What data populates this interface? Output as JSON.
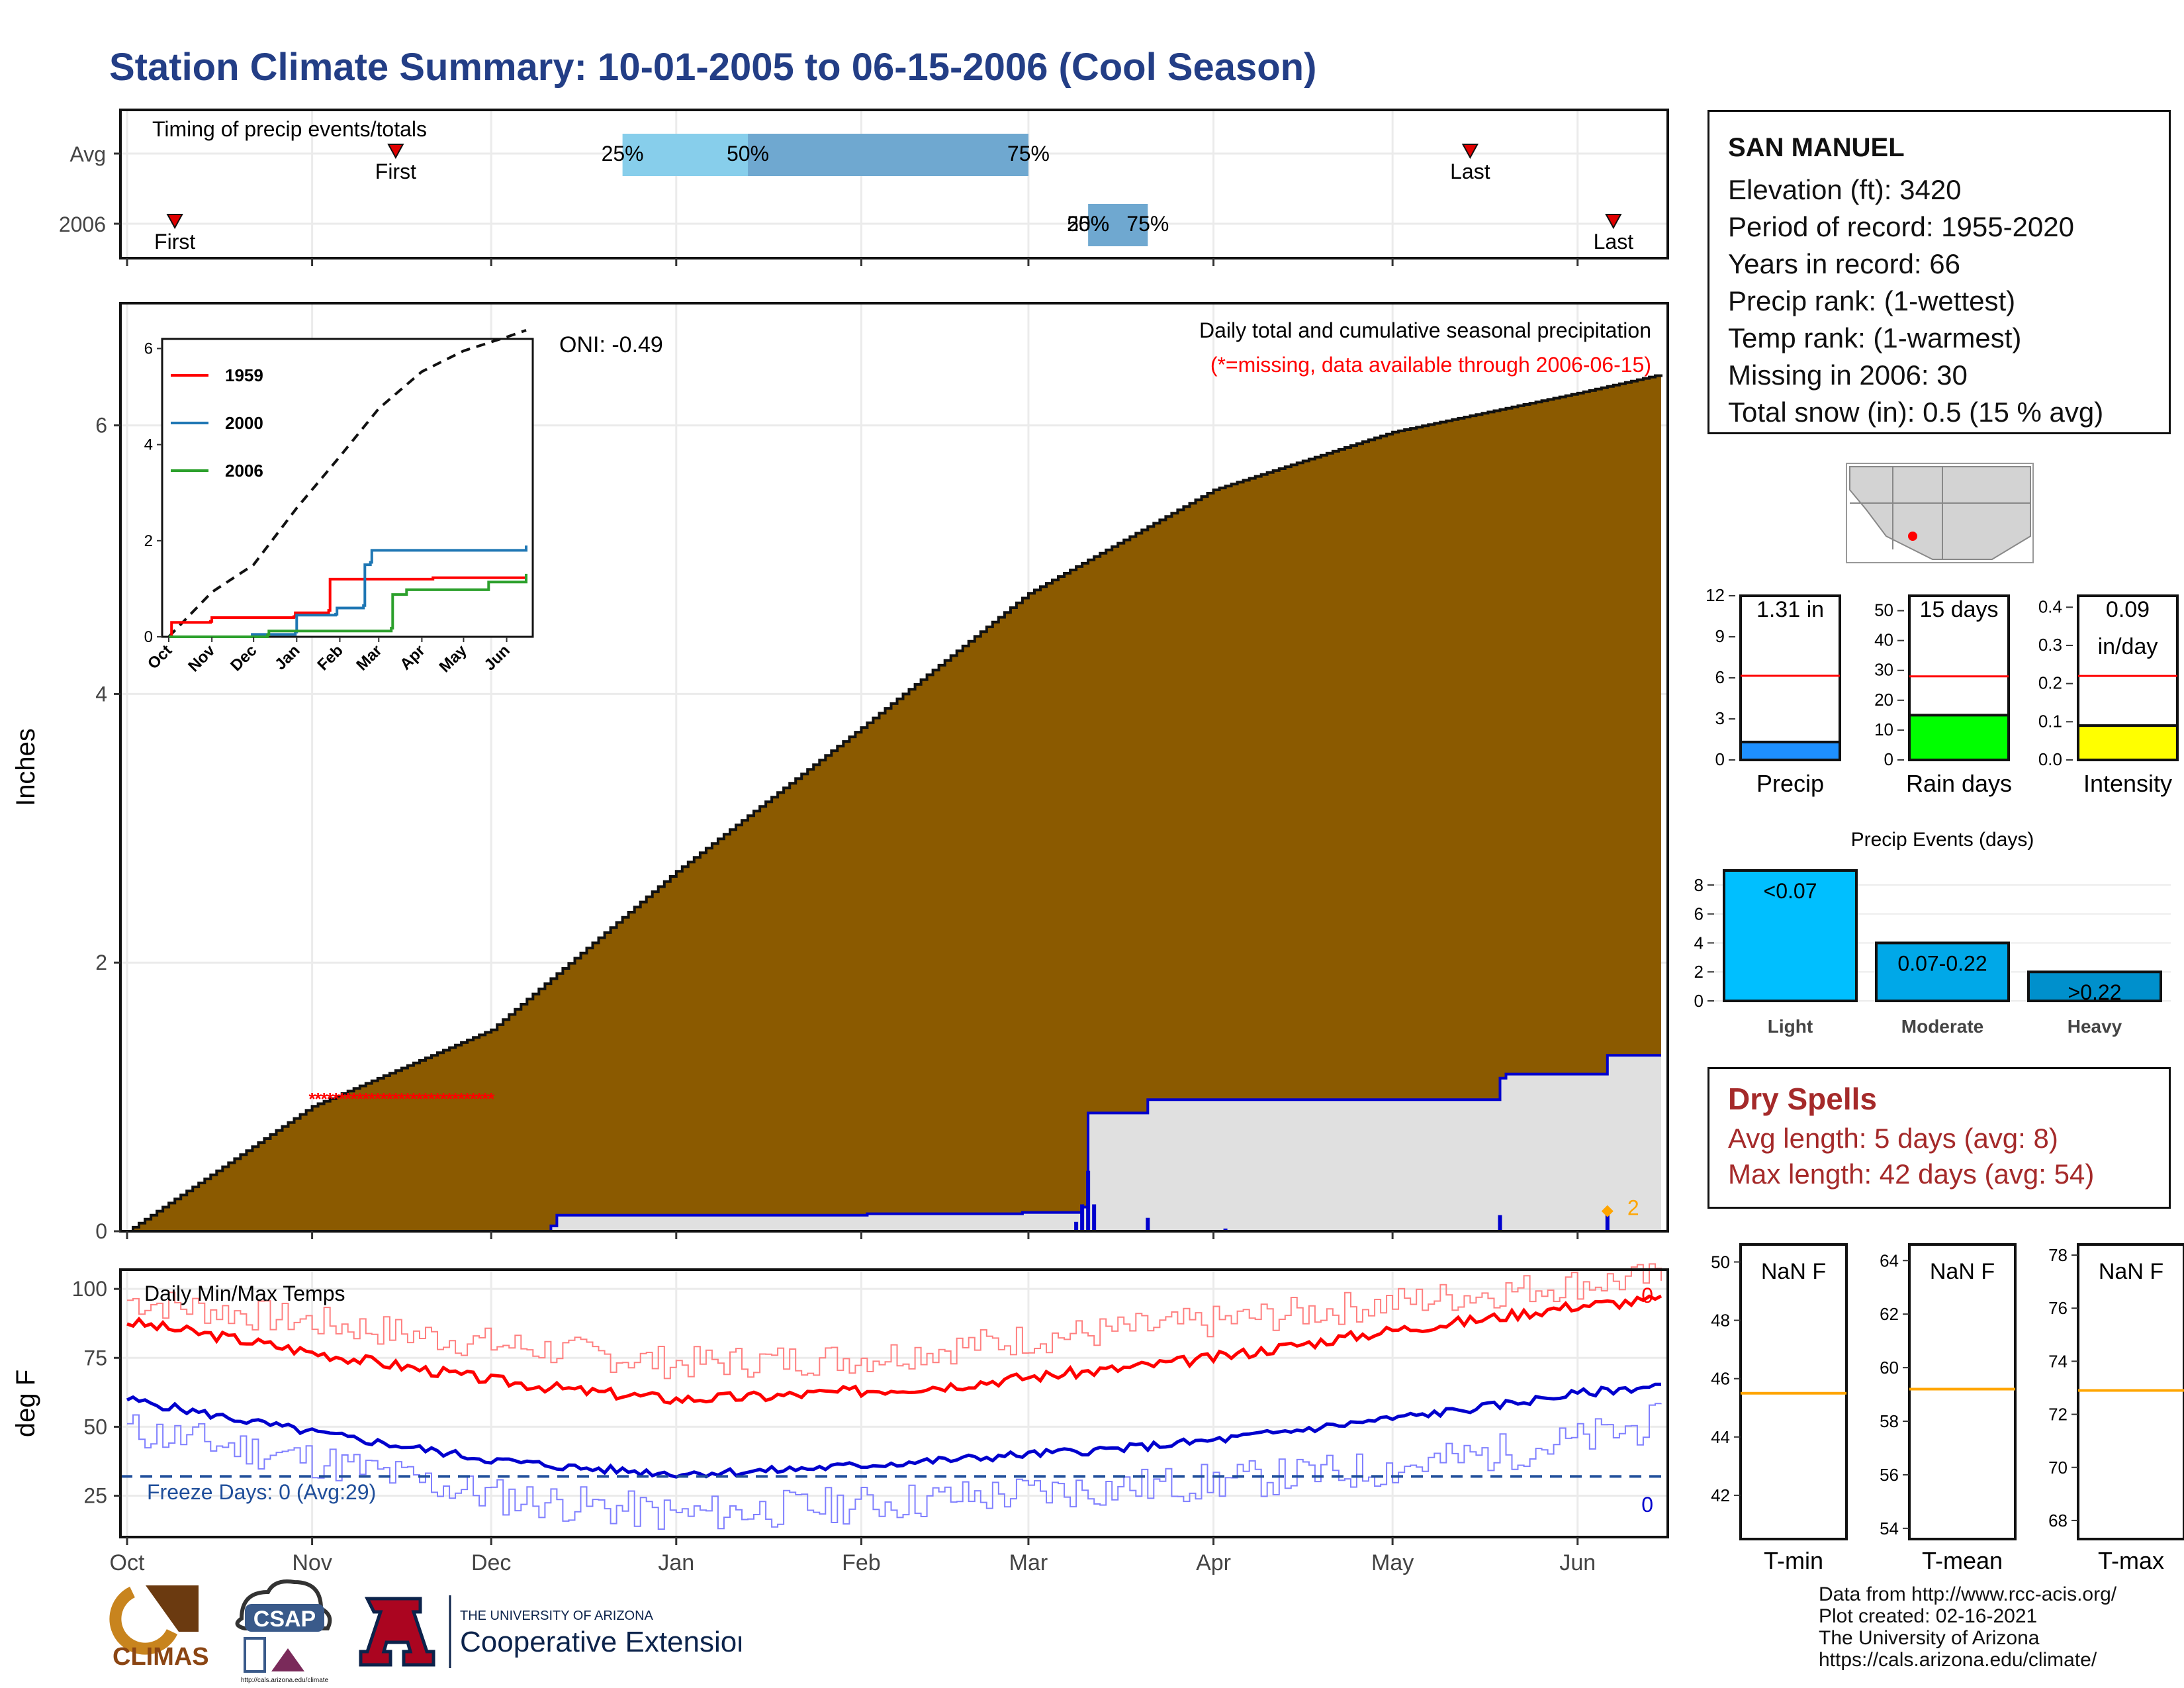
{
  "title": "Station Climate Summary: 10-01-2005 to 06-15-2006 (Cool Season)",
  "station": {
    "name": "SAN MANUEL",
    "elevation": "Elevation (ft): 3420",
    "period": "Period of record: 1955-2020",
    "years": "Years in record: 66",
    "precip_rank": "Precip rank:  (1-wettest)",
    "temp_rank": "Temp rank:  (1-warmest)",
    "missing": "Missing in 2006: 30",
    "snow": "Total snow (in): 0.5 (15 % avg)"
  },
  "dry_spells": {
    "heading": "Dry Spells",
    "avg": "Avg length: 5 days (avg: 8)",
    "max": "Max length: 42 days (avg: 54)"
  },
  "credits": [
    "Data from http://www.rcc-acis.org/",
    "Plot created: 02-16-2021",
    "The University of Arizona",
    "https://cals.arizona.edu/climate/"
  ],
  "logos": {
    "climas": "CLIMAS",
    "csap": "CSAP",
    "csap_url": "http://cals.arizona.edu/climate",
    "ua_small": "THE UNIVERSITY OF ARIZONA",
    "ua_big": "Cooperative Extension"
  },
  "colors": {
    "title": "#233e86",
    "brown": "#8b5a00",
    "blue": "#0000cd",
    "red": "#ff0000",
    "grey_fill": "#e0e0e0",
    "dry": "#a52a2a"
  },
  "chart_data": [
    {
      "id": "timing",
      "type": "range",
      "title": "Timing of precip events/totals",
      "rows": [
        "Avg",
        "2006"
      ],
      "avg": {
        "first": "Nov 15",
        "last": "May 14",
        "q25": "Dec 23",
        "q50": "Jan 13",
        "q75": "Mar 1",
        "first_label": "First",
        "last_label": "Last"
      },
      "y2006": {
        "first": "Oct 9",
        "last": "Jun 7",
        "q25": "Mar 11",
        "q50": "Mar 11",
        "q75": "Mar 21",
        "first_label": "First",
        "last_label": "Last"
      },
      "pct_labels": [
        "25%",
        "50%",
        "75%"
      ]
    },
    {
      "id": "precip",
      "type": "area",
      "title": "Daily total and cumulative seasonal precipitation",
      "subtitle": "(*=missing, data available through 2006-06-15)",
      "annotation": "ONI: -0.49",
      "ylabel": "Inches",
      "ylim": [
        0,
        6.9
      ],
      "yticks": [
        0,
        2,
        4,
        6
      ],
      "xticks": [
        "Oct",
        "Nov",
        "Dec",
        "Jan",
        "Feb",
        "Mar",
        "Apr",
        "May",
        "Jun"
      ],
      "avg_cumulative": {
        "x": [
          0,
          31,
          61,
          92,
          123,
          151,
          182,
          212,
          243,
          257
        ],
        "y": [
          0,
          0.93,
          1.5,
          2.68,
          3.75,
          4.75,
          5.52,
          5.95,
          6.24,
          6.38
        ]
      },
      "obs_cumulative": {
        "x": [
          0,
          71,
          72,
          123,
          124,
          150,
          160,
          161,
          170,
          171,
          230,
          231,
          247,
          248,
          257
        ],
        "y": [
          0,
          0.04,
          0.12,
          0.12,
          0.13,
          0.14,
          0.18,
          0.88,
          0.88,
          0.98,
          1.14,
          1.17,
          1.17,
          1.31,
          1.31
        ]
      },
      "daily_spikes": {
        "x": [
          159,
          160,
          161,
          162,
          171,
          184,
          230,
          248
        ],
        "y": [
          0.07,
          0.2,
          0.45,
          0.2,
          0.1,
          0.02,
          0.12,
          0.15
        ]
      },
      "missing_range": {
        "start_day": 31,
        "end_day": 61,
        "y": 1.0
      },
      "snow_label": "2",
      "inset": {
        "ylim": [
          0,
          6.2
        ],
        "yticks": [
          0,
          2,
          4,
          6
        ],
        "xticks": [
          "Oct",
          "Nov",
          "Dec",
          "Jan",
          "Feb",
          "Mar",
          "Apr",
          "May",
          "Jun"
        ],
        "series": [
          {
            "name": "1959",
            "color": "#ff0000",
            "x": [
              0,
              2,
              30,
              31,
              90,
              91,
              115,
              116,
              190,
              257
            ],
            "y": [
              0,
              0.3,
              0.32,
              0.4,
              0.42,
              0.5,
              0.55,
              1.2,
              1.23,
              1.27
            ]
          },
          {
            "name": "2000",
            "color": "#1f77b4",
            "x": [
              0,
              60,
              91,
              92,
              120,
              121,
              140,
              141,
              145,
              146,
              160,
              257
            ],
            "y": [
              0,
              0.05,
              0.1,
              0.45,
              0.47,
              0.6,
              0.65,
              1.5,
              1.55,
              1.8,
              1.8,
              1.9
            ]
          },
          {
            "name": "2006",
            "color": "#2ca02c",
            "x": [
              0,
              71,
              72,
              160,
              161,
              170,
              171,
              230,
              257
            ],
            "y": [
              0,
              0.04,
              0.12,
              0.18,
              0.88,
              0.88,
              0.98,
              1.14,
              1.31
            ]
          }
        ],
        "avg_cumulative": {
          "x": [
            0,
            31,
            61,
            92,
            123,
            151,
            182,
            212,
            243,
            257
          ],
          "y": [
            0,
            0.93,
            1.5,
            2.68,
            3.75,
            4.75,
            5.52,
            5.95,
            6.24,
            6.38
          ]
        }
      }
    },
    {
      "id": "temps",
      "type": "line",
      "title": "Daily Min/Max Temps",
      "ylabel": "deg F",
      "ylim": [
        10,
        107
      ],
      "yticks": [
        25,
        50,
        75,
        100
      ],
      "xticks": [
        "Oct",
        "Nov",
        "Dec",
        "Jan",
        "Feb",
        "Mar",
        "Apr",
        "May",
        "Jun"
      ],
      "freeze_line": 32,
      "freeze_label": "Freeze Days: 0 (Avg:29)",
      "count_max_label": "0",
      "count_min_label": "0",
      "avg_max": {
        "x": [
          0,
          15,
          31,
          46,
          61,
          76,
          92,
          107,
          123,
          138,
          151,
          166,
          182,
          197,
          212,
          227,
          243,
          257
        ],
        "y": [
          88,
          83,
          77,
          72,
          67,
          63,
          60,
          61,
          63,
          65,
          68,
          71,
          75,
          80,
          85,
          89,
          94,
          96
        ]
      },
      "avg_min": {
        "x": [
          0,
          15,
          31,
          46,
          61,
          76,
          92,
          107,
          123,
          138,
          151,
          166,
          182,
          197,
          212,
          227,
          243,
          257
        ],
        "y": [
          60,
          54,
          48,
          43,
          38,
          35,
          33,
          34,
          36,
          38,
          40,
          42,
          45,
          49,
          53,
          57,
          62,
          65
        ]
      },
      "record_max": {
        "x": [
          0,
          31,
          61,
          92,
          123,
          151,
          182,
          212,
          243,
          257
        ],
        "y": [
          96,
          88,
          80,
          73,
          75,
          82,
          88,
          95,
          102,
          104
        ]
      },
      "record_min": {
        "x": [
          0,
          31,
          61,
          92,
          123,
          151,
          182,
          212,
          243,
          257
        ],
        "y": [
          49,
          38,
          25,
          18,
          22,
          26,
          30,
          35,
          45,
          52
        ]
      }
    },
    {
      "id": "precip_bars",
      "type": "bar",
      "ylim": [
        0,
        12
      ],
      "yticks": [
        0,
        3,
        6,
        9,
        12
      ],
      "value": 1.31,
      "avg_line": 6.15,
      "label": "1.31 in",
      "xlabel": "Precip",
      "color": "#1e90ff"
    },
    {
      "id": "raindays",
      "type": "bar",
      "ylim": [
        0,
        55
      ],
      "yticks": [
        0,
        10,
        20,
        30,
        40,
        50
      ],
      "value": 15,
      "avg_line": 28,
      "label": "15 days",
      "xlabel": "Rain days",
      "color": "#00ff00"
    },
    {
      "id": "intensity",
      "type": "bar",
      "ylim": [
        0,
        0.43
      ],
      "yticks": [
        0.0,
        0.1,
        0.2,
        0.3,
        0.4
      ],
      "value": 0.09,
      "avg_line": 0.22,
      "label": "0.09",
      "label2": "in/day",
      "xlabel": "Intensity",
      "color": "#ffff00"
    },
    {
      "id": "events",
      "type": "bar",
      "title": "Precip Events (days)",
      "categories": [
        "Light",
        "Moderate",
        "Heavy"
      ],
      "values": [
        9,
        4,
        2
      ],
      "labels": [
        "<0.07",
        "0.07-0.22",
        ">0.22"
      ],
      "colors": [
        "#00bfff",
        "#00a8e8",
        "#0090cc"
      ],
      "ylim": [
        0,
        9
      ],
      "yticks": [
        0,
        2,
        4,
        6,
        8
      ]
    },
    {
      "id": "tmin",
      "type": "bar",
      "label": "NaN F",
      "xlabel": "T-min",
      "ylim": [
        40.5,
        50.6
      ],
      "yticks": [
        42,
        44,
        46,
        48,
        50
      ],
      "avg_line": 45.5
    },
    {
      "id": "tmean",
      "type": "bar",
      "label": "NaN F",
      "xlabel": "T-mean",
      "ylim": [
        53.6,
        64.6
      ],
      "yticks": [
        54,
        56,
        58,
        60,
        62,
        64
      ],
      "avg_line": 59.2
    },
    {
      "id": "tmax",
      "type": "bar",
      "label": "NaN F",
      "xlabel": "T-max",
      "ylim": [
        67.3,
        78.4
      ],
      "yticks": [
        68,
        70,
        72,
        74,
        76,
        78
      ],
      "avg_line": 72.9
    }
  ]
}
